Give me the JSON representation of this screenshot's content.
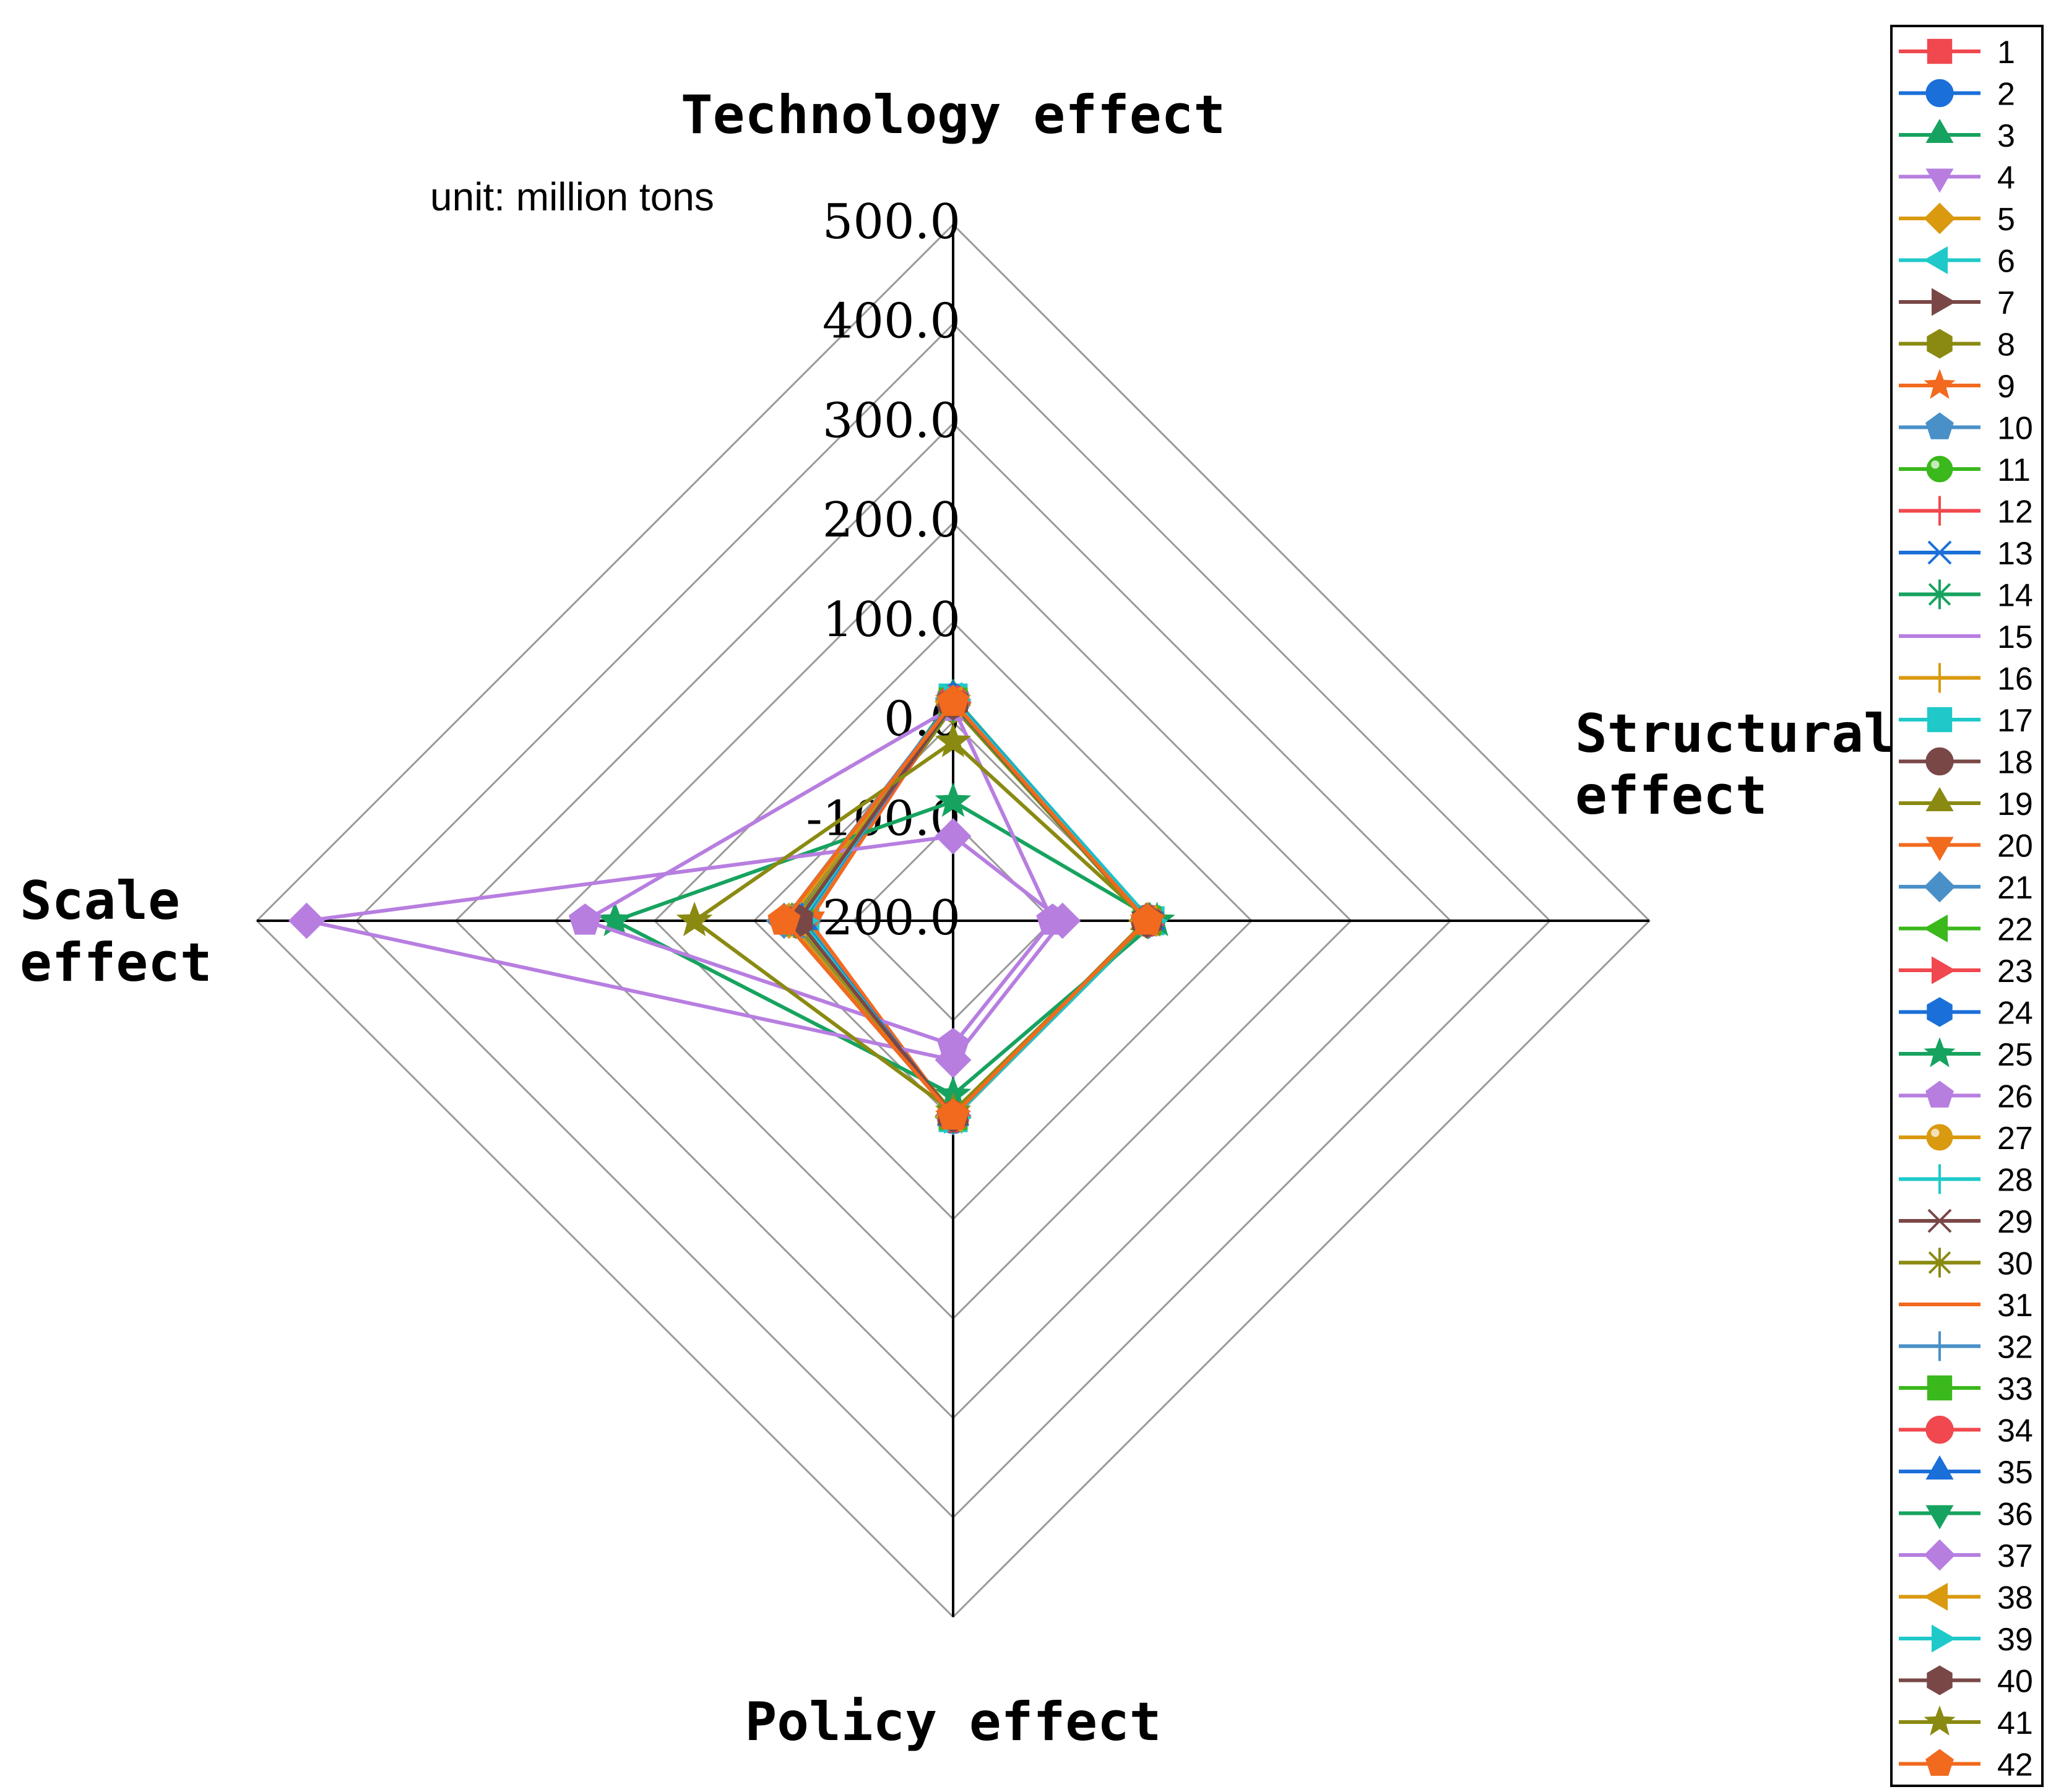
{
  "chart_data": {
    "type": "radar",
    "unit_label": "unit: million tons",
    "axes": [
      {
        "key": "technology",
        "label_lines": [
          "Technology effect"
        ]
      },
      {
        "key": "structural",
        "label_lines": [
          "Structural",
          "effect"
        ]
      },
      {
        "key": "policy",
        "label_lines": [
          "Policy effect"
        ]
      },
      {
        "key": "scale",
        "label_lines": [
          "Scale",
          "effect"
        ]
      }
    ],
    "range": [
      -200,
      500
    ],
    "ticks": [
      {
        "value": 500,
        "label": "500.0"
      },
      {
        "value": 400,
        "label": "400.0"
      },
      {
        "value": 300,
        "label": "300.0"
      },
      {
        "value": 200,
        "label": "200.0"
      },
      {
        "value": 100,
        "label": "100.0"
      },
      {
        "value": 0,
        "label": "0.0"
      },
      {
        "value": -100,
        "label": "-100.0"
      },
      {
        "value": -200,
        "label": "-200.0"
      }
    ],
    "legend_position": "right",
    "series": [
      {
        "name": "1",
        "color": "#f0484e",
        "marker": "square",
        "values": [
          20,
          -5,
          -3,
          -40
        ]
      },
      {
        "name": "2",
        "color": "#1b6fd8",
        "marker": "circle",
        "values": [
          22,
          -3,
          -2,
          -45
        ]
      },
      {
        "name": "3",
        "color": "#16a35f",
        "marker": "triangle-up",
        "values": [
          25,
          -2,
          -4,
          -38
        ]
      },
      {
        "name": "4",
        "color": "#b77ee0",
        "marker": "triangle-down",
        "values": [
          18,
          -4,
          -5,
          -42
        ]
      },
      {
        "name": "5",
        "color": "#d99a10",
        "marker": "diamond",
        "values": [
          20,
          -5,
          -3,
          -35
        ]
      },
      {
        "name": "6",
        "color": "#1fc9c9",
        "marker": "triangle-left",
        "values": [
          24,
          -1,
          -2,
          -50
        ]
      },
      {
        "name": "7",
        "color": "#7a4747",
        "marker": "triangle-right",
        "values": [
          19,
          -6,
          -4,
          -40
        ]
      },
      {
        "name": "8",
        "color": "#8a8a12",
        "marker": "hexagon",
        "values": [
          15,
          -5,
          -6,
          -45
        ]
      },
      {
        "name": "9",
        "color": "#f16a1e",
        "marker": "star",
        "values": [
          21,
          -4,
          -3,
          -48
        ]
      },
      {
        "name": "10",
        "color": "#4a90c8",
        "marker": "pentagon",
        "values": [
          23,
          -3,
          -2,
          -52
        ]
      },
      {
        "name": "11",
        "color": "#3ab81c",
        "marker": "sphere",
        "values": [
          20,
          -5,
          -4,
          -44
        ]
      },
      {
        "name": "12",
        "color": "#f0484e",
        "marker": "plus",
        "values": [
          22,
          -6,
          -3,
          -41
        ]
      },
      {
        "name": "13",
        "color": "#1b6fd8",
        "marker": "x",
        "values": [
          18,
          -4,
          -5,
          -39
        ]
      },
      {
        "name": "14",
        "color": "#16a35f",
        "marker": "asterisk",
        "values": [
          17,
          -3,
          -4,
          -46
        ]
      },
      {
        "name": "15",
        "color": "#b77ee0",
        "marker": "hline",
        "values": [
          21,
          -5,
          -2,
          -43
        ]
      },
      {
        "name": "16",
        "color": "#d99a10",
        "marker": "vline",
        "values": [
          20,
          -4,
          -3,
          -40
        ]
      },
      {
        "name": "17",
        "color": "#1fc9c9",
        "marker": "square",
        "values": [
          24,
          -2,
          -2,
          -51
        ]
      },
      {
        "name": "18",
        "color": "#7a4747",
        "marker": "circle",
        "values": [
          19,
          -5,
          -4,
          -47
        ]
      },
      {
        "name": "19",
        "color": "#8a8a12",
        "marker": "triangle-up",
        "values": [
          16,
          -6,
          -5,
          -44
        ]
      },
      {
        "name": "20",
        "color": "#f16a1e",
        "marker": "triangle-down",
        "values": [
          21,
          -4,
          -3,
          -55
        ]
      },
      {
        "name": "21",
        "color": "#4a90c8",
        "marker": "diamond",
        "values": [
          22,
          -3,
          -4,
          -30
        ]
      },
      {
        "name": "22",
        "color": "#3ab81c",
        "marker": "triangle-left",
        "values": [
          20,
          -5,
          -3,
          -42
        ]
      },
      {
        "name": "23",
        "color": "#f0484e",
        "marker": "triangle-right",
        "values": [
          19,
          -4,
          -2,
          -48
        ]
      },
      {
        "name": "24",
        "color": "#1b6fd8",
        "marker": "hexagon",
        "values": [
          23,
          -3,
          -3,
          -45
        ]
      },
      {
        "name": "25",
        "color": "#16a35f",
        "marker": "star",
        "values": [
          -80,
          5,
          -25,
          140
        ]
      },
      {
        "name": "26",
        "color": "#b77ee0",
        "marker": "pentagon",
        "values": [
          15,
          -100,
          -75,
          170
        ]
      },
      {
        "name": "27",
        "color": "#d99a10",
        "marker": "sphere",
        "values": [
          20,
          -5,
          -4,
          -44
        ]
      },
      {
        "name": "28",
        "color": "#1fc9c9",
        "marker": "plus",
        "values": [
          22,
          -3,
          -2,
          -47
        ]
      },
      {
        "name": "29",
        "color": "#7a4747",
        "marker": "x",
        "values": [
          19,
          -5,
          -4,
          -43
        ]
      },
      {
        "name": "30",
        "color": "#8a8a12",
        "marker": "asterisk",
        "values": [
          17,
          -6,
          -3,
          -41
        ]
      },
      {
        "name": "31",
        "color": "#f16a1e",
        "marker": "hline",
        "values": [
          21,
          -4,
          -3,
          -46
        ]
      },
      {
        "name": "32",
        "color": "#4a90c8",
        "marker": "vline",
        "values": [
          22,
          -3,
          -2,
          -49
        ]
      },
      {
        "name": "33",
        "color": "#3ab81c",
        "marker": "square",
        "values": [
          20,
          -5,
          -4,
          -45
        ]
      },
      {
        "name": "34",
        "color": "#f0484e",
        "marker": "circle",
        "values": [
          21,
          -4,
          -3,
          -44
        ]
      },
      {
        "name": "35",
        "color": "#1b6fd8",
        "marker": "triangle-up",
        "values": [
          23,
          -3,
          -3,
          -48
        ]
      },
      {
        "name": "36",
        "color": "#16a35f",
        "marker": "triangle-down",
        "values": [
          18,
          -5,
          -4,
          -42
        ]
      },
      {
        "name": "37",
        "color": "#b77ee0",
        "marker": "diamond",
        "values": [
          -115,
          -90,
          -60,
          450
        ]
      },
      {
        "name": "38",
        "color": "#d99a10",
        "marker": "triangle-left",
        "values": [
          20,
          -4,
          -3,
          -43
        ]
      },
      {
        "name": "39",
        "color": "#1fc9c9",
        "marker": "triangle-right",
        "values": [
          22,
          -3,
          -2,
          -47
        ]
      },
      {
        "name": "40",
        "color": "#7a4747",
        "marker": "hexagon",
        "values": [
          19,
          -5,
          -4,
          -44
        ]
      },
      {
        "name": "41",
        "color": "#8a8a12",
        "marker": "star",
        "values": [
          -20,
          -3,
          -8,
          60
        ]
      },
      {
        "name": "42",
        "color": "#f16a1e",
        "marker": "pentagon",
        "values": [
          20,
          -5,
          -4,
          -30
        ]
      }
    ]
  }
}
